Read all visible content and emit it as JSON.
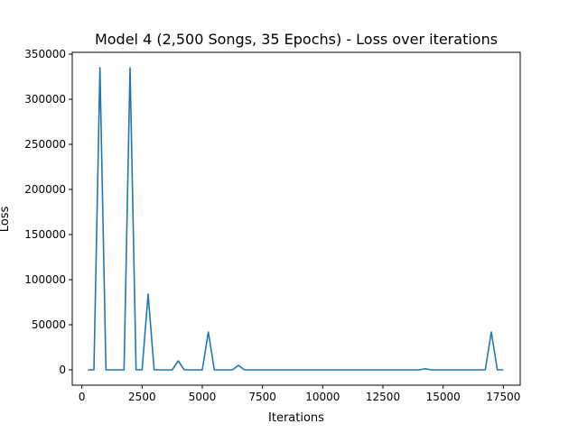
{
  "chart_data": {
    "type": "line",
    "title": "Model 4 (2,500 Songs, 35 Epochs) - Loss over iterations",
    "xlabel": "Iterations",
    "ylabel": "Loss",
    "xlim": [
      -400,
      18200
    ],
    "ylim": [
      -17000,
      352000
    ],
    "xticks": [
      0,
      2500,
      5000,
      7500,
      10000,
      12500,
      15000,
      17500
    ],
    "xtick_labels": [
      "0",
      "2500",
      "5000",
      "7500",
      "10000",
      "12500",
      "15000",
      "17500"
    ],
    "yticks": [
      0,
      50000,
      100000,
      150000,
      200000,
      250000,
      300000,
      350000
    ],
    "ytick_labels": [
      "0",
      "50000",
      "100000",
      "150000",
      "200000",
      "250000",
      "300000",
      "350000"
    ],
    "grid": false,
    "series": [
      {
        "color": "#1f77b4",
        "x": [
          250,
          500,
          750,
          1000,
          1250,
          1500,
          1750,
          2000,
          2250,
          2500,
          2750,
          3000,
          3250,
          3500,
          3750,
          4000,
          4250,
          4500,
          4750,
          5000,
          5250,
          5500,
          5750,
          6000,
          6250,
          6500,
          6750,
          7000,
          7250,
          7500,
          7750,
          8000,
          8250,
          8500,
          8750,
          9000,
          9250,
          9500,
          9750,
          10000,
          10250,
          10500,
          10750,
          11000,
          11250,
          11500,
          11750,
          12000,
          12250,
          12500,
          12750,
          13000,
          13250,
          13500,
          13750,
          14000,
          14250,
          14500,
          14750,
          15000,
          15250,
          15500,
          15750,
          16000,
          16250,
          16500,
          16750,
          17000,
          17250,
          17500
        ],
        "y": [
          0,
          0,
          335000,
          0,
          0,
          0,
          0,
          335000,
          0,
          0,
          84000,
          0,
          0,
          0,
          0,
          10000,
          0,
          0,
          0,
          0,
          42000,
          0,
          0,
          0,
          0,
          5000,
          0,
          0,
          0,
          0,
          0,
          0,
          0,
          0,
          0,
          0,
          0,
          0,
          0,
          0,
          0,
          0,
          0,
          0,
          0,
          0,
          0,
          0,
          0,
          0,
          0,
          0,
          0,
          0,
          0,
          0,
          1200,
          0,
          0,
          0,
          0,
          0,
          0,
          0,
          0,
          0,
          0,
          42000,
          0,
          0
        ]
      }
    ]
  }
}
